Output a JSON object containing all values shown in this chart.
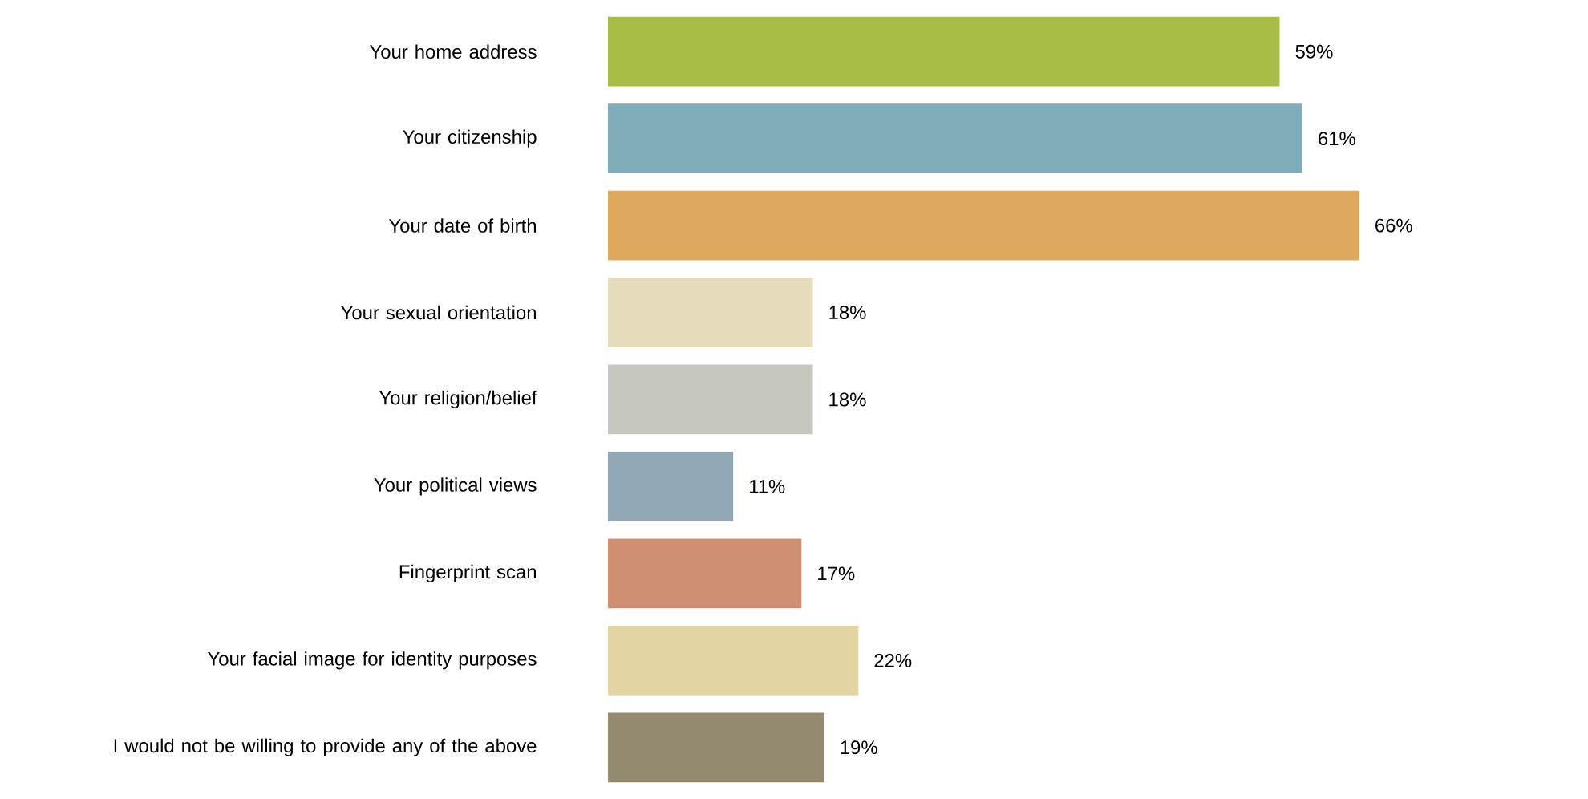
{
  "chart_data": {
    "type": "bar",
    "orientation": "horizontal",
    "categories": [
      "Your home address",
      "Your citizenship",
      "Your date of birth",
      "Your sexual orientation",
      "Your religion/belief",
      "Your political views",
      "Fingerprint scan",
      "Your facial image for identity purposes",
      "I would not be willing to provide any of the above"
    ],
    "values": [
      59,
      61,
      66,
      18,
      18,
      11,
      17,
      22,
      19
    ],
    "value_labels": [
      "59%",
      "61%",
      "66%",
      "18%",
      "18%",
      "11%",
      "17%",
      "22%",
      "19%"
    ],
    "colors": [
      "#a8bd45",
      "#7fadba",
      "#dea95f",
      "#e6dcbc",
      "#c6c8bf",
      "#91a9b6",
      "#cf8f73",
      "#e2d5a2",
      "#948a70"
    ],
    "tick_labels": "y"
  }
}
